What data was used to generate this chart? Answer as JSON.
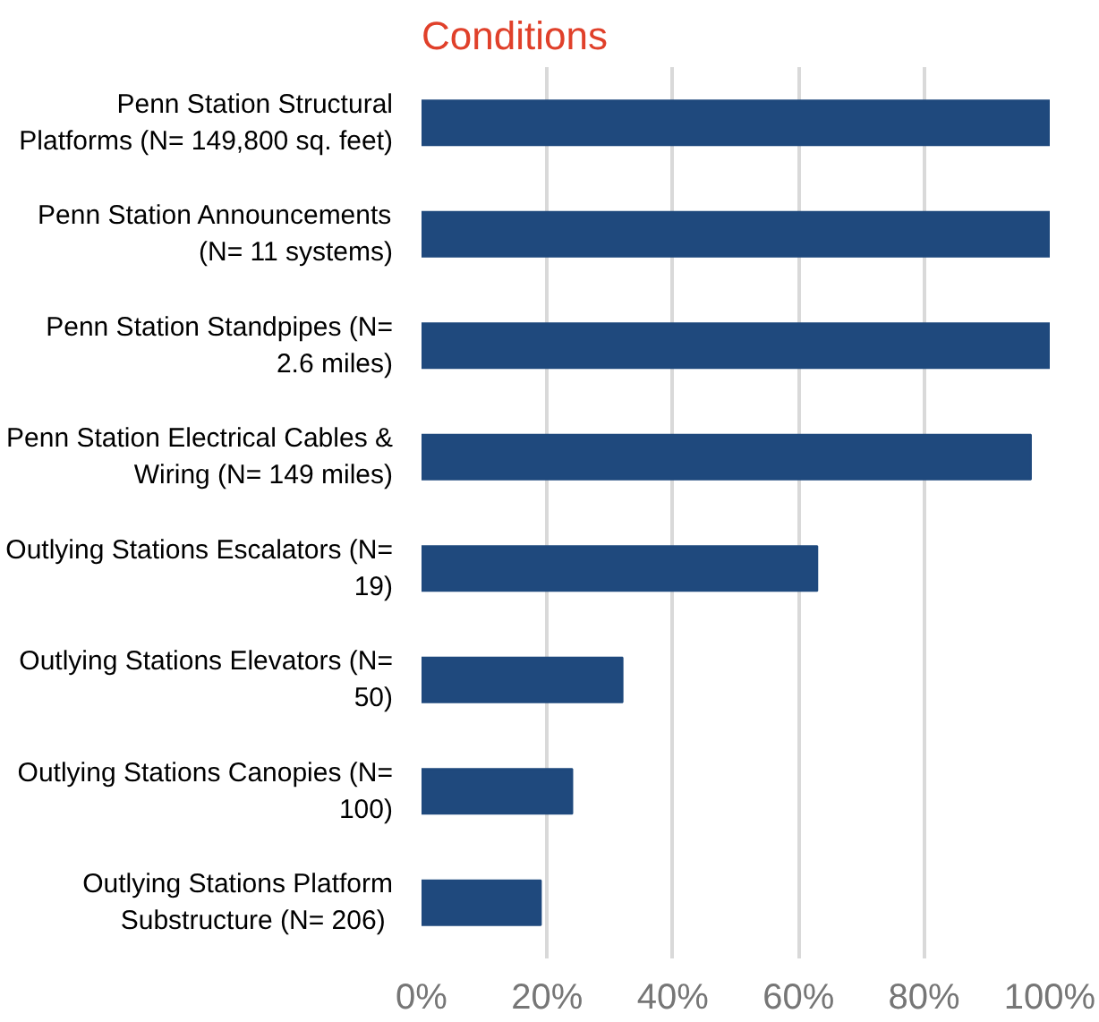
{
  "chart_data": {
    "type": "bar",
    "orientation": "horizontal",
    "title": "Conditions",
    "categories": [
      "Penn Station Structural\nPlatforms (N= 149,800 sq. feet)",
      "Penn Station Announcements\n(N= 11 systems)",
      "Penn Station Standpipes (N=\n2.6 miles)",
      "Penn Station Electrical Cables &\nWiring (N= 149 miles)",
      "Outlying Stations Escalators (N=\n19)",
      "Outlying Stations Elevators (N=\n50)",
      "Outlying Stations Canopies (N=\n100)",
      "Outlying Stations Platform\nSubstructure (N=  206)"
    ],
    "values": [
      100,
      100,
      100,
      97,
      63,
      32,
      24,
      19
    ],
    "color": "#1f497d",
    "xlim": [
      0,
      100
    ],
    "xticks": [
      {
        "value": 0,
        "label": "0%"
      },
      {
        "value": 20,
        "label": "20%"
      },
      {
        "value": 40,
        "label": "40%"
      },
      {
        "value": 60,
        "label": "60%"
      },
      {
        "value": 80,
        "label": "80%"
      },
      {
        "value": 100,
        "label": "100%"
      }
    ],
    "grid": "x"
  }
}
